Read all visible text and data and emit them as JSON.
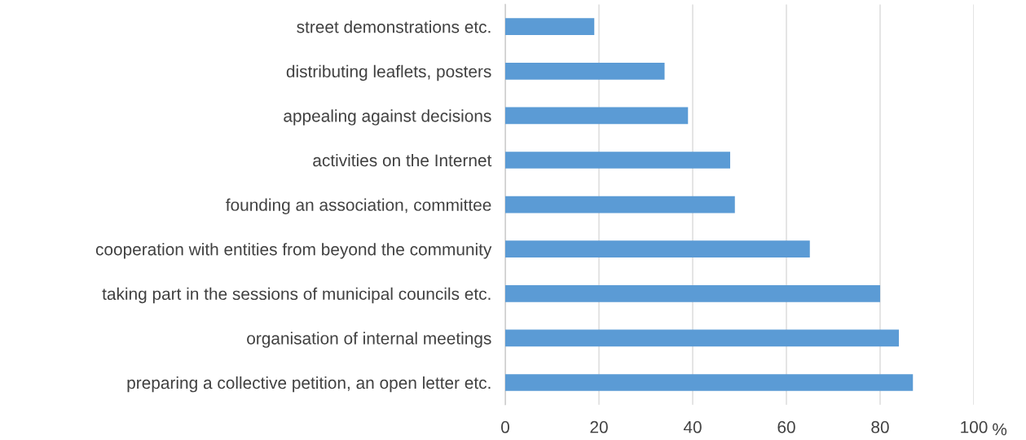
{
  "chart_data": {
    "type": "bar",
    "orientation": "horizontal",
    "xlabel": "%",
    "categories": [
      "street demonstrations etc.",
      "distributing leaflets, posters",
      "appealing against decisions",
      "activities on the Internet",
      "founding an association, committee",
      "cooperation with entities from beyond the community",
      "taking part in the sessions of municipal councils etc.",
      "organisation of internal meetings",
      "preparing a collective petition, an open letter etc."
    ],
    "values": [
      19,
      34,
      39,
      48,
      49,
      65,
      80,
      84,
      87
    ],
    "color": "#5b9bd5",
    "xlim": [
      0,
      100
    ],
    "xticks": [
      0,
      20,
      40,
      60,
      80,
      100
    ],
    "grid": "x",
    "legend": false
  }
}
